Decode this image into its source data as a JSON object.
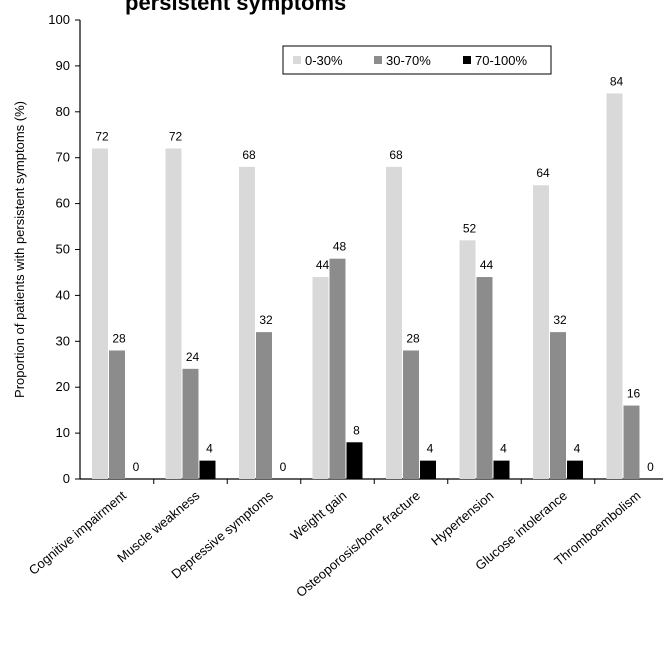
{
  "title": "persistent symptoms",
  "chart_data": {
    "type": "bar",
    "title": "persistent symptoms",
    "xlabel": "",
    "ylabel": "Proportion of patients with persistent symptoms (%)",
    "ylim": [
      0,
      100
    ],
    "yticks": [
      "0",
      "10",
      "20",
      "30",
      "40",
      "50",
      "60",
      "70",
      "80",
      "90",
      "100"
    ],
    "categories": [
      "Cognitive impairment",
      "Muscle weakness",
      "Depressive symptoms",
      "Weight gain",
      "Osteoporosis/bone fracture",
      "Hypertension",
      "Glucose intolerance",
      "Thromboembolism"
    ],
    "series": [
      {
        "name": "0-30%",
        "color": "#d9d9d9",
        "values": [
          72,
          72,
          68,
          44,
          68,
          52,
          64,
          84
        ]
      },
      {
        "name": "30-70%",
        "color": "#8c8c8c",
        "values": [
          28,
          24,
          32,
          48,
          28,
          44,
          32,
          16
        ]
      },
      {
        "name": "70-100%",
        "color": "#000000",
        "values": [
          0,
          4,
          0,
          8,
          4,
          4,
          4,
          0
        ]
      }
    ],
    "legend_position": "top-right",
    "grid": false
  }
}
